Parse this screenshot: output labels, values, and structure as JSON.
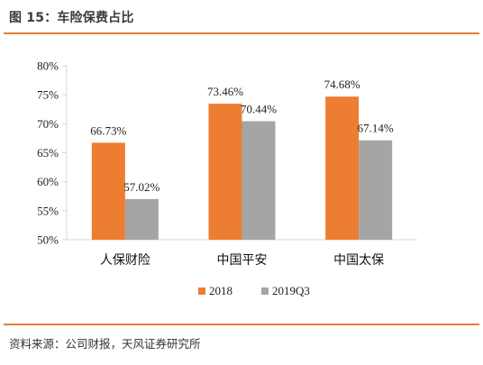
{
  "header": {
    "title": "图 15：车险保费占比"
  },
  "footer": {
    "source": "资料来源：公司财报，天风证券研究所"
  },
  "chart_data": {
    "type": "bar",
    "title": "",
    "xlabel": "",
    "ylabel": "",
    "categories": [
      "人保财险",
      "中国平安",
      "中国太保"
    ],
    "series": [
      {
        "name": "2018",
        "values": [
          66.73,
          73.46,
          74.68
        ],
        "labels": [
          "66.73%",
          "73.46%",
          "74.68%"
        ],
        "color": "#ed7d31"
      },
      {
        "name": "2019Q3",
        "values": [
          57.02,
          70.44,
          67.14
        ],
        "labels": [
          "57.02%",
          "70.44%",
          "67.14%"
        ],
        "color": "#a5a5a5"
      }
    ],
    "ylim": [
      50,
      80
    ],
    "yticks": [
      50,
      55,
      60,
      65,
      70,
      75,
      80
    ],
    "ytick_labels": [
      "50%",
      "55%",
      "60%",
      "65%",
      "70%",
      "75%",
      "80%"
    ],
    "grid": false,
    "legend": "bottom"
  }
}
